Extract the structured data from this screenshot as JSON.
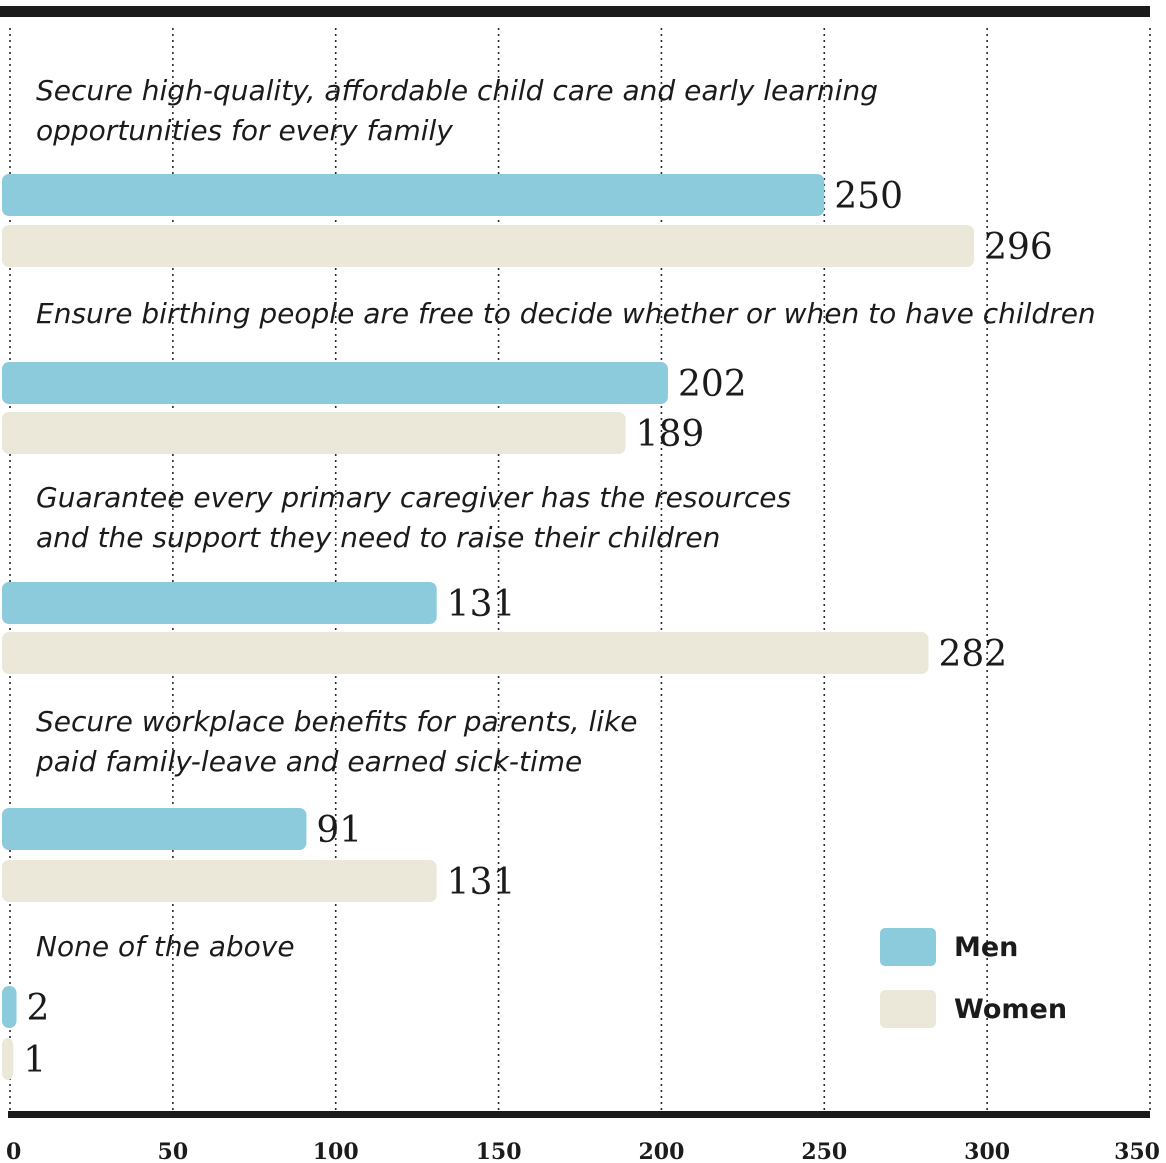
{
  "chart_data": {
    "type": "bar",
    "orientation": "horizontal",
    "categories": [
      [
        "Secure high-quality, affordable child care and early learning",
        "opportunities for every family"
      ],
      [
        "Ensure birthing people are free to decide whether or when to have children"
      ],
      [
        "Guarantee every primary caregiver has the resources",
        "and the support they need to raise their children"
      ],
      [
        "Secure workplace benefits for parents, like",
        "paid family-leave and earned sick-time"
      ],
      [
        "None of the above"
      ]
    ],
    "series": [
      {
        "name": "Men",
        "color": "#8ccbdc",
        "values": [
          250,
          202,
          131,
          91,
          2
        ]
      },
      {
        "name": "Women",
        "color": "#ebe8da",
        "values": [
          296,
          189,
          282,
          131,
          1
        ]
      }
    ],
    "xlim": [
      0,
      350
    ],
    "xticks": [
      0,
      50,
      100,
      150,
      200,
      250,
      300,
      350
    ],
    "grid": "vertical-dotted",
    "legend_position": "bottom-right"
  }
}
